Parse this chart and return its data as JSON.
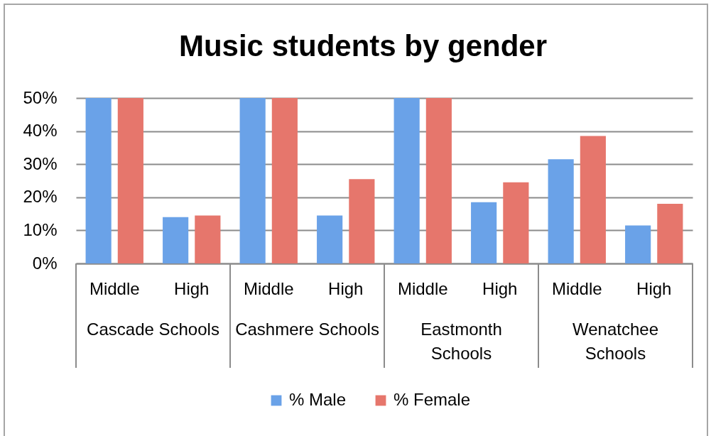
{
  "chart_data": {
    "type": "bar",
    "title": "Music students by gender",
    "categories": [
      "Middle",
      "High",
      "Middle",
      "High",
      "Middle",
      "High",
      "Middle",
      "High"
    ],
    "annotations": [
      "Cascade Schools",
      "Cashmere Schools",
      "Eastmonth Schools",
      "Wenatchee Schools"
    ],
    "series": [
      {
        "name": "% Male",
        "color": "#6aa2e8",
        "values": [
          50,
          14,
          50,
          14.5,
          50,
          18.5,
          31.5,
          11.5
        ]
      },
      {
        "name": "% Female",
        "color": "#e6766c",
        "values": [
          50,
          14.5,
          50,
          25.5,
          50,
          24.5,
          38.5,
          18
        ]
      }
    ],
    "ylim": [
      0,
      50
    ],
    "yticks": [
      {
        "value": 0,
        "label": "0%"
      },
      {
        "value": 10,
        "label": "10%"
      },
      {
        "value": 20,
        "label": "20%"
      },
      {
        "value": 30,
        "label": "30%"
      },
      {
        "value": 40,
        "label": "40%"
      },
      {
        "value": 50,
        "label": "50%"
      }
    ],
    "grid": "y",
    "legend": "bottom"
  }
}
